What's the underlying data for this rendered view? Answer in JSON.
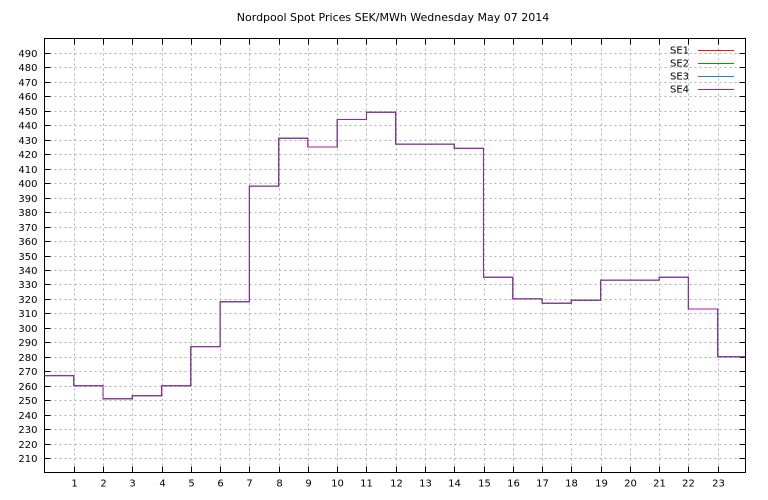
{
  "chart_data": {
    "type": "line",
    "title": "Nordpool Spot Prices SEK/MWh Wednesday May 07 2014",
    "xlabel": "",
    "ylabel": "",
    "x": [
      0,
      1,
      2,
      3,
      4,
      5,
      6,
      7,
      8,
      9,
      10,
      11,
      12,
      13,
      14,
      15,
      16,
      17,
      18,
      19,
      20,
      21,
      22,
      23
    ],
    "xlim": [
      0,
      23.95
    ],
    "ylim": [
      200,
      500
    ],
    "yticks": [
      210,
      220,
      230,
      240,
      250,
      260,
      270,
      280,
      290,
      300,
      310,
      320,
      330,
      340,
      350,
      360,
      370,
      380,
      390,
      400,
      410,
      420,
      430,
      440,
      450,
      460,
      470,
      480,
      490
    ],
    "xticks": [
      1,
      2,
      3,
      4,
      5,
      6,
      7,
      8,
      9,
      10,
      11,
      12,
      13,
      14,
      15,
      16,
      17,
      18,
      19,
      20,
      21,
      22,
      23
    ],
    "grid": true,
    "legend_position": "top-right",
    "step": true,
    "series": [
      {
        "name": "SE1",
        "color": "#e41a1c",
        "values": [
          267,
          260,
          251,
          253,
          260,
          287,
          318,
          398,
          431,
          425,
          444,
          449,
          427,
          427,
          424,
          335,
          320,
          317,
          319,
          333,
          333,
          335,
          313,
          280
        ]
      },
      {
        "name": "SE2",
        "color": "#00a000",
        "values": [
          267,
          260,
          251,
          253,
          260,
          287,
          318,
          398,
          431,
          425,
          444,
          449,
          427,
          427,
          424,
          335,
          320,
          317,
          319,
          333,
          333,
          335,
          313,
          280
        ]
      },
      {
        "name": "SE3",
        "color": "#2a7fd4",
        "values": [
          267,
          260,
          251,
          253,
          260,
          287,
          318,
          398,
          431,
          425,
          444,
          449,
          427,
          427,
          424,
          335,
          320,
          317,
          319,
          333,
          333,
          335,
          313,
          280
        ]
      },
      {
        "name": "SE4",
        "color": "#a020a0",
        "values": [
          267,
          260,
          251,
          253,
          260,
          287,
          318,
          398,
          431,
          425,
          444,
          449,
          427,
          427,
          424,
          335,
          320,
          317,
          319,
          333,
          333,
          335,
          313,
          280
        ]
      }
    ]
  }
}
